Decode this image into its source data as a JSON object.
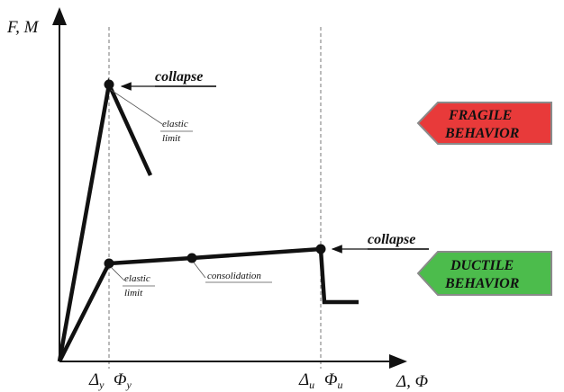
{
  "axes": {
    "y_label": "F, M",
    "x_label": "Δ, Φ",
    "tick_y_delta": "Δ",
    "tick_y_delta_sub": "y",
    "tick_y_phi": "Φ",
    "tick_y_phi_sub": "y",
    "tick_u_delta": "Δ",
    "tick_u_delta_sub": "u",
    "tick_u_phi": "Φ",
    "tick_u_phi_sub": "u"
  },
  "fragile": {
    "collapse_label": "collapse",
    "elastic_line1": "elastic",
    "elastic_line2": "limit",
    "badge_line1": "FRAGILE",
    "badge_line2": "BEHAVIOR",
    "badge_color": "#e83a3a"
  },
  "ductile": {
    "collapse_label": "collapse",
    "elastic_line1": "elastic",
    "elastic_line2": "limit",
    "consolidation_label": "consolidation",
    "badge_line1": "DUCTILE",
    "badge_line2": "BEHAVIOR",
    "badge_color": "#4cbc4c"
  },
  "colors": {
    "curve": "#111111",
    "guide": "#777777"
  }
}
